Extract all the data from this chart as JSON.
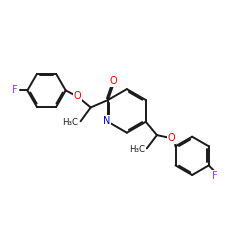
{
  "bg_color": "#ffffff",
  "bond_color": "#1a1a1a",
  "F_color": "#9b30ff",
  "O_color": "#ff0000",
  "N_color": "#0000cd",
  "lw": 1.4,
  "dbo": 0.055,
  "ring_r": 0.72,
  "xlim": [
    0,
    10
  ],
  "ylim": [
    0,
    10
  ]
}
